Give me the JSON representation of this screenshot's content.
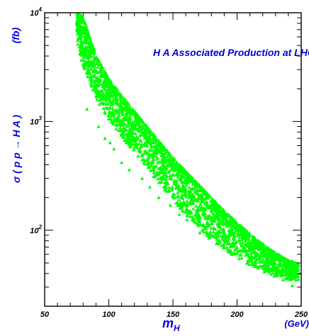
{
  "chart_data": {
    "type": "scatter",
    "title": "H A Associated Production at LHC",
    "ylabel": "σ ( p p → H A )",
    "yunit": "(fb)",
    "xlabel": "m",
    "xlabel_sub": "H",
    "xunit": "(GeV)",
    "xlim": [
      50,
      250
    ],
    "ylim": [
      20,
      10000
    ],
    "yscale": "log",
    "grid": false,
    "x_ticks": [
      "50",
      "100",
      "150",
      "200",
      "250"
    ],
    "y_ticks": [
      {
        "value": 10000,
        "base": "10",
        "exp": "4"
      },
      {
        "value": 1000,
        "base": "10",
        "exp": "3"
      },
      {
        "value": 100,
        "base": "10",
        "exp": "2"
      }
    ],
    "marker": "triangle",
    "colors": {
      "points": "#00ff00",
      "text": "#0000dd",
      "axes": "#000000"
    },
    "band_upper": [
      [
        75,
        10000
      ],
      [
        80,
        9200
      ],
      [
        90,
        4100
      ],
      [
        100,
        2500
      ],
      [
        110,
        1750
      ],
      [
        120,
        1250
      ],
      [
        130,
        900
      ],
      [
        140,
        650
      ],
      [
        150,
        470
      ],
      [
        160,
        350
      ],
      [
        170,
        265
      ],
      [
        180,
        200
      ],
      [
        190,
        152
      ],
      [
        200,
        118
      ],
      [
        210,
        93
      ],
      [
        220,
        75
      ],
      [
        230,
        62
      ],
      [
        240,
        53
      ],
      [
        248,
        49
      ]
    ],
    "band_lower": [
      [
        75,
        5200
      ],
      [
        80,
        3200
      ],
      [
        90,
        1600
      ],
      [
        100,
        1050
      ],
      [
        110,
        720
      ],
      [
        120,
        510
      ],
      [
        130,
        370
      ],
      [
        140,
        260
      ],
      [
        150,
        190
      ],
      [
        160,
        140
      ],
      [
        170,
        106
      ],
      [
        180,
        82
      ],
      [
        190,
        66
      ],
      [
        200,
        56
      ],
      [
        210,
        48
      ],
      [
        220,
        42
      ],
      [
        230,
        38
      ],
      [
        240,
        35
      ],
      [
        248,
        34
      ]
    ],
    "outliers": [
      [
        83,
        1300
      ],
      [
        92,
        900
      ],
      [
        97,
        700
      ],
      [
        104,
        560
      ],
      [
        101,
        640
      ],
      [
        110,
        420
      ],
      [
        116,
        360
      ],
      [
        126,
        300
      ],
      [
        132,
        250
      ],
      [
        139,
        200
      ],
      [
        148,
        170
      ],
      [
        155,
        140
      ],
      [
        161,
        125
      ],
      [
        171,
        95
      ],
      [
        178,
        85
      ],
      [
        186,
        75
      ],
      [
        196,
        62
      ],
      [
        203,
        60
      ],
      [
        211,
        52
      ],
      [
        221,
        45
      ],
      [
        229,
        38
      ],
      [
        236,
        35
      ],
      [
        243,
        31
      ],
      [
        249,
        40
      ],
      [
        208,
        50
      ],
      [
        224,
        44
      ]
    ]
  }
}
